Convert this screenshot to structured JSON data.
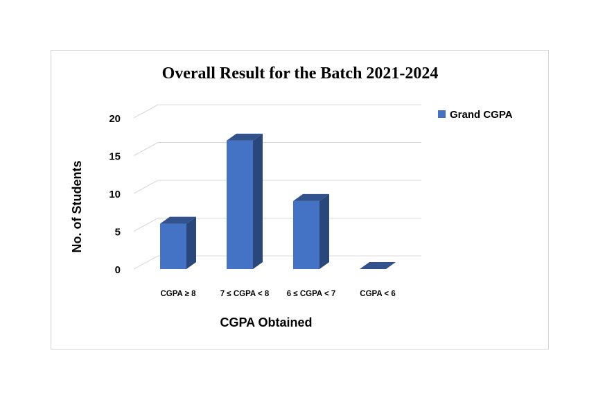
{
  "chart_data": {
    "type": "bar",
    "title": "Overall Result for the Batch 2021-2024",
    "xlabel": "CGPA Obtained",
    "ylabel": "No. of Students",
    "categories": [
      "CGPA ≥ 8",
      "7  ≤ CGPA < 8",
      "6 ≤ CGPA < 7",
      "CGPA < 6"
    ],
    "series": [
      {
        "name": "Grand CGPA",
        "values": [
          6,
          17,
          9,
          0
        ],
        "color": "#4472C4"
      }
    ],
    "ylim": [
      0,
      20
    ],
    "yticks": [
      0,
      5,
      10,
      15,
      20
    ],
    "grid": true,
    "legend_position": "top-right",
    "style": "3d-column"
  }
}
